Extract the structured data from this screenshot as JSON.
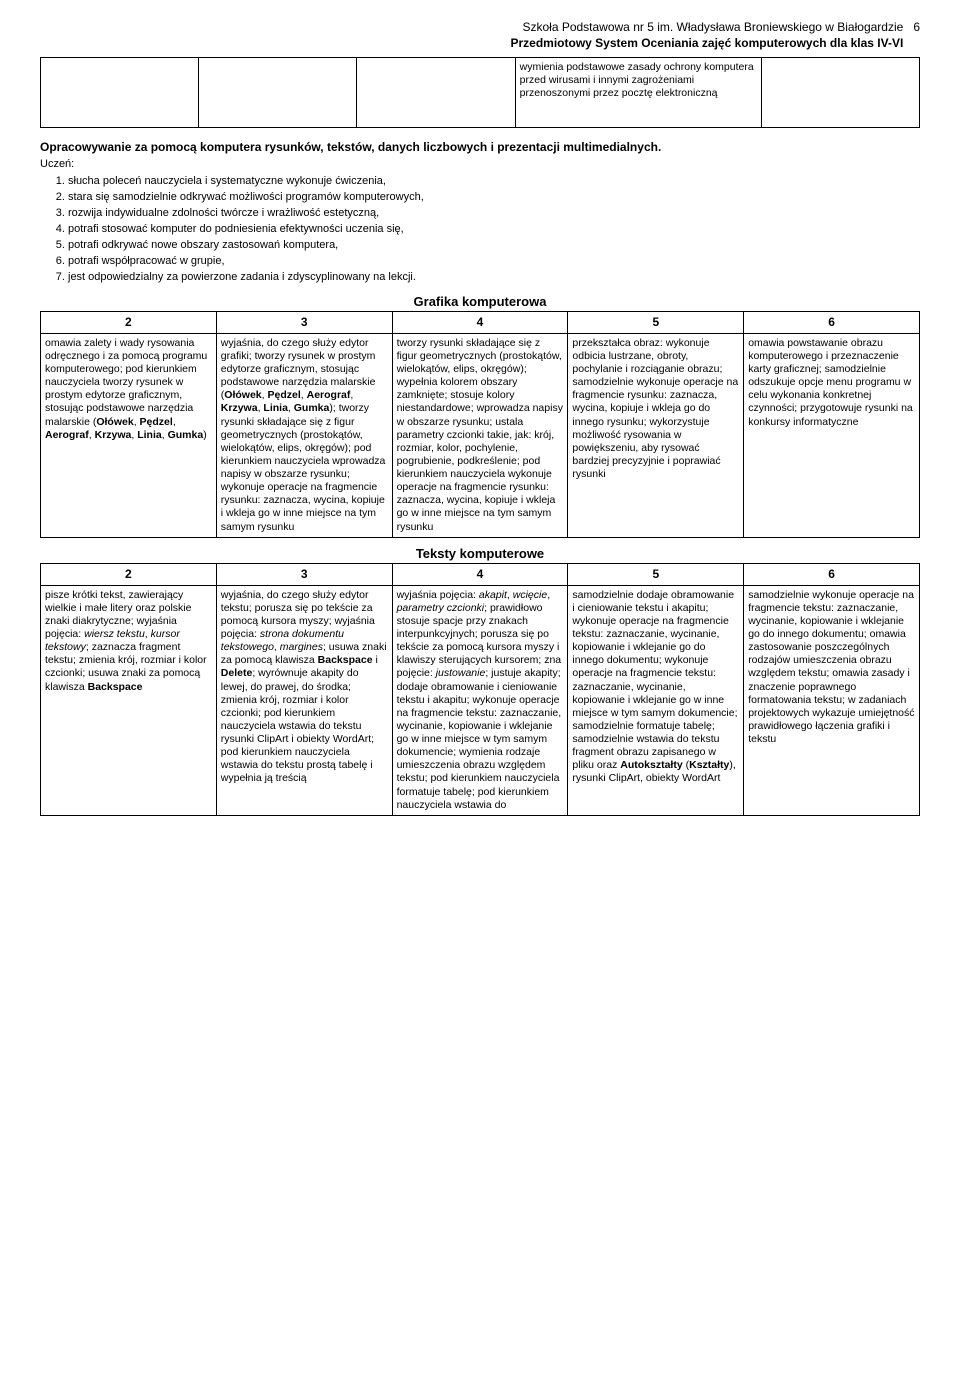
{
  "header": {
    "line1": "Szkoła Podstawowa nr 5 im. Władysława Broniewskiego w Białogardzie",
    "line2": "Przedmiotowy System Oceniania zajęć komputerowych dla klas IV-VI",
    "page_num": "6"
  },
  "top_table": {
    "cell4": "wymienia podstawowe zasady ochrony komputera przed wirusami i innymi zagrożeniami przenoszonymi przez pocztę elektroniczną"
  },
  "intro": {
    "title": "Opracowywanie za pomocą komputera rysunków, tekstów, danych liczbowych i prezentacji multimedialnych.",
    "uczen": "Uczeń:",
    "items": [
      "słucha poleceń nauczyciela i systematyczne wykonuje ćwiczenia,",
      "stara się samodzielnie odkrywać możliwości programów komputerowych,",
      "rozwija indywidualne zdolności twórcze i wrażliwość estetyczną,",
      "potrafi stosować komputer do podniesienia efektywności uczenia się,",
      "potrafi odkrywać nowe obszary zastosowań komputera,",
      "potrafi współpracować w grupie,",
      "jest odpowiedzialny za powierzone zadania i zdyscyplinowany na lekcji."
    ]
  },
  "grafika": {
    "heading": "Grafika komputerowa",
    "cols": [
      "2",
      "3",
      "4",
      "5",
      "6"
    ],
    "row": {
      "c2": "omawia zalety i wady rysowania odręcznego i za pomocą programu komputerowego; pod kierunkiem nauczyciela tworzy rysunek w prostym edytorze graficznym, stosując podstawowe narzędzia malarskie (<strong>Ołówek</strong>, <strong>Pędzel</strong>, <strong>Aerograf</strong>, <strong>Krzywa</strong>, <strong>Linia</strong>, <strong>Gumka</strong>)",
      "c3": "wyjaśnia, do czego służy edytor grafiki; tworzy rysunek w prostym edytorze graficznym, stosując podstawowe narzędzia malarskie (<strong>Ołówek</strong>, <strong>Pędzel</strong>, <strong>Aerograf</strong>, <strong>Krzywa</strong>, <strong>Linia</strong>, <strong>Gumka</strong>); tworzy rysunki składające się z figur geometrycznych (prostokątów, wielokątów, elips, okręgów); pod kierunkiem nauczyciela wprowadza napisy w obszarze rysunku; wykonuje operacje na fragmencie rysunku: zaznacza, wycina, kopiuje i wkleja go w inne miejsce na tym samym rysunku",
      "c4": "tworzy rysunki składające się z figur geometrycznych (prostokątów, wielokątów, elips, okręgów); wypełnia kolorem obszary zamknięte; stosuje kolory niestandardowe; wprowadza napisy w obszarze rysunku; ustala parametry czcionki takie, jak: krój, rozmiar, kolor, pochylenie, pogrubienie, podkreślenie; pod kierunkiem nauczyciela wykonuje operacje na fragmencie rysunku: zaznacza, wycina, kopiuje i wkleja go w inne miejsce na tym samym rysunku",
      "c5": "przekształca obraz: wykonuje odbicia lustrzane, obroty, pochylanie i rozciąganie obrazu; samodzielnie wykonuje operacje na fragmencie rysunku: zaznacza, wycina, kopiuje i wkleja go do innego rysunku; wykorzystuje możliwość rysowania w powiększeniu, aby rysować bardziej precyzyjnie i poprawiać rysunki",
      "c6": "omawia powstawanie obrazu komputerowego i przeznaczenie karty graficznej; samodzielnie odszukuje opcje menu programu w celu wykonania konkretnej czynności; przygotowuje rysunki na konkursy informatyczne"
    }
  },
  "teksty": {
    "heading": "Teksty komputerowe",
    "cols": [
      "2",
      "3",
      "4",
      "5",
      "6"
    ],
    "row": {
      "c2": "pisze krótki tekst, zawierający wielkie i małe litery oraz polskie znaki diakrytyczne; wyjaśnia pojęcia: <em>wiersz tekstu</em>, <em>kursor tekstowy</em>; zaznacza fragment tekstu; zmienia krój, rozmiar i kolor czcionki; usuwa znaki za pomocą klawisza <strong>Backspace</strong>",
      "c3": "wyjaśnia, do czego służy edytor tekstu; porusza się po tekście za pomocą kursora myszy; wyjaśnia pojęcia: <em>strona dokumentu tekstowego</em>, <em>margines</em>; usuwa znaki za pomocą klawisza <strong>Backspace</strong> i <strong>Delete</strong>; wyrównuje akapity do lewej, do prawej, do środka; zmienia krój, rozmiar i kolor czcionki; pod kierunkiem nauczyciela wstawia do tekstu rysunki ClipArt i obiekty WordArt; pod kierunkiem nauczyciela wstawia do tekstu prostą tabelę i wypełnia ją treścią",
      "c4": "wyjaśnia pojęcia: <em>akapit</em>, <em>wcięcie</em>, <em>parametry czcionki</em>; prawidłowo stosuje spacje przy znakach interpunkcyjnych; porusza się po tekście za pomocą kursora myszy i klawiszy sterujących kursorem; zna pojęcie: <em>justowanie</em>; justuje akapity; dodaje obramowanie i cieniowanie tekstu i akapitu; wykonuje operacje na fragmencie tekstu: zaznaczanie, wycinanie, kopiowanie i wklejanie go w inne miejsce w tym samym dokumencie; wymienia rodzaje umieszczenia obrazu względem tekstu; pod kierunkiem nauczyciela formatuje tabelę; pod kierunkiem nauczyciela wstawia do",
      "c5": "samodzielnie dodaje obramowanie i cieniowanie tekstu i akapitu; wykonuje operacje na fragmencie tekstu: zaznaczanie, wycinanie, kopiowanie i wklejanie go do innego dokumentu; wykonuje operacje na fragmencie tekstu: zaznaczanie, wycinanie, kopiowanie i wklejanie go w inne miejsce w tym samym dokumencie; samodzielnie formatuje tabelę; samodzielnie wstawia do tekstu fragment obrazu zapisanego w pliku oraz <strong>Autokształty</strong> (<strong>Kształty</strong>), rysunki ClipArt, obiekty WordArt",
      "c6": "samodzielnie wykonuje operacje na fragmencie tekstu: zaznaczanie, wycinanie, kopiowanie i wklejanie go do innego dokumentu; omawia zastosowanie poszczególnych rodzajów umieszczenia obrazu względem tekstu; omawia zasady i znaczenie poprawnego formatowania tekstu; w zadaniach projektowych wykazuje umiejętność prawidłowego łączenia grafiki i tekstu"
    }
  }
}
